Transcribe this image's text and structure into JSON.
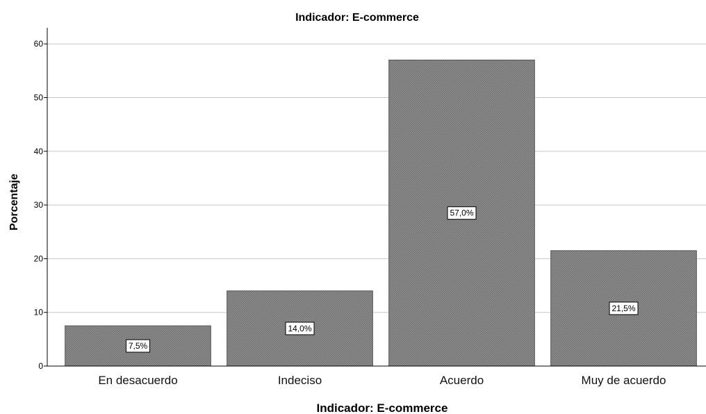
{
  "chart_data": {
    "type": "bar",
    "title": "Indicador: E-commerce",
    "xlabel": "Indicador: E-commerce",
    "ylabel": "Porcentaje",
    "categories": [
      "En desacuerdo",
      "Indeciso",
      "Acuerdo",
      "Muy de acuerdo"
    ],
    "values": [
      7.5,
      14.0,
      57.0,
      21.5
    ],
    "data_labels": [
      "7,5%",
      "14,0%",
      "57,0%",
      "21,5%"
    ],
    "ylim": [
      0,
      63
    ],
    "yticks": [
      0,
      10,
      20,
      30,
      40,
      50,
      60
    ],
    "grid": true,
    "legend": "none",
    "bar_color": "#808080",
    "grid_color": "#c8c8c8"
  }
}
